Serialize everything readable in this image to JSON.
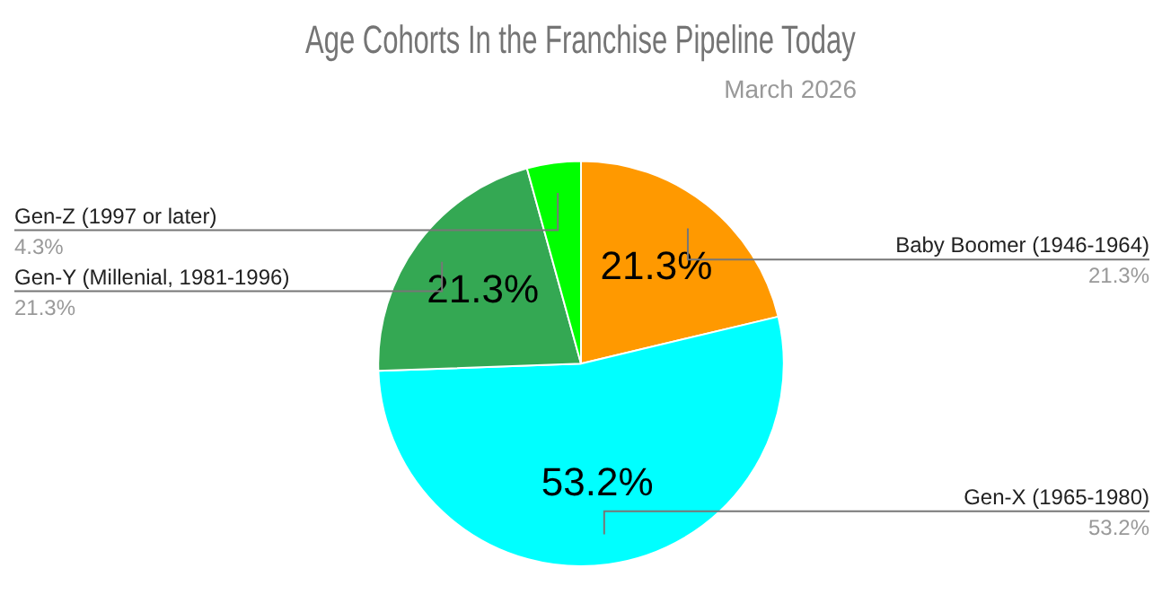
{
  "chart_data": {
    "type": "pie",
    "title": "Age Cohorts In the Franchise Pipeline Today",
    "subtitle": "March 2026",
    "categories": [
      "Baby Boomer (1946-1964)",
      "Gen-X (1965-1980)",
      "Gen-Y (Millenial, 1981-1996)",
      "Gen-Z (1997 or later)"
    ],
    "values": [
      21.3,
      53.2,
      21.3,
      4.3
    ],
    "colors": [
      "#ff9900",
      "#00ffff",
      "#34a853",
      "#00ff00"
    ],
    "value_labels": [
      "21.3%",
      "53.2%",
      "21.3%",
      "4.3%"
    ],
    "legend": false
  }
}
